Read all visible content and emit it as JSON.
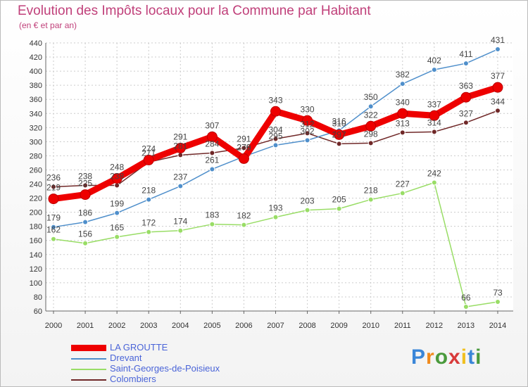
{
  "title": "Evolution des Impôts locaux pour la Commune par Habitant",
  "subtitle": "(en € et par an)",
  "logo": {
    "text": "Proxiti",
    "letters": [
      "P",
      "r",
      "o",
      "x",
      "i",
      "t",
      "i"
    ],
    "colors": [
      "#3a86d8",
      "#f08a1c",
      "#4a9a3c",
      "#d83a3a",
      "#f0c020",
      "#3a86d8",
      "#4a9a3c"
    ]
  },
  "chart_data": {
    "type": "line",
    "title": "Evolution des Impôts locaux pour la Commune par Habitant",
    "ylabel": "(en € et par an)",
    "xlabel": "",
    "x": [
      "2000",
      "2001",
      "2002",
      "2003",
      "2004",
      "2005",
      "2006",
      "2007",
      "2008",
      "2009",
      "2010",
      "2011",
      "2012",
      "2013",
      "2014"
    ],
    "ylim": [
      60,
      440
    ],
    "yticks": [
      60,
      80,
      100,
      120,
      140,
      160,
      180,
      200,
      220,
      240,
      260,
      280,
      300,
      320,
      340,
      360,
      380,
      400,
      420,
      440
    ],
    "series": [
      {
        "name": "LA GROUTTE",
        "color": "#ee0000",
        "values": [
          219,
          225,
          248,
          274,
          291,
          307,
          276,
          343,
          330,
          310,
          322,
          340,
          337,
          363,
          377
        ]
      },
      {
        "name": "Drevant",
        "color": "#4f8fcb",
        "values": [
          179,
          186,
          199,
          218,
          237,
          261,
          279,
          295,
          302,
          316,
          350,
          382,
          402,
          411,
          431
        ]
      },
      {
        "name": "Saint-Georges-de-Poisieux",
        "color": "#99dd66",
        "values": [
          162,
          156,
          165,
          172,
          174,
          183,
          182,
          193,
          203,
          205,
          218,
          227,
          242,
          66,
          73
        ]
      },
      {
        "name": "Colombiers",
        "color": "#702828",
        "values": [
          236,
          238,
          238,
          271,
          281,
          284,
          291,
          304,
          312,
          297,
          298,
          313,
          314,
          327,
          344
        ]
      }
    ]
  }
}
